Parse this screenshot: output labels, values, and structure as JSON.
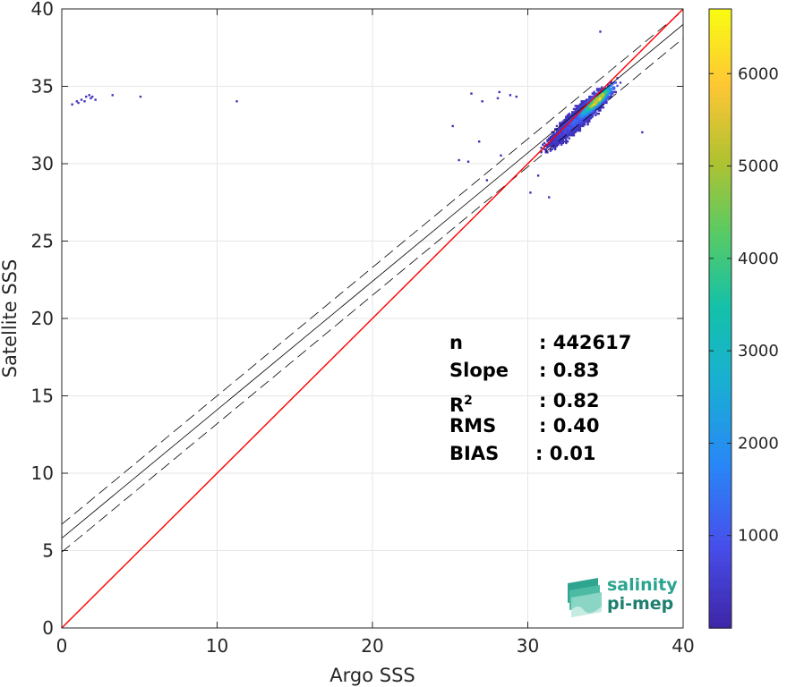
{
  "chart_data": {
    "type": "heatmap",
    "xlabel": "Argo SSS",
    "ylabel": "Satellite SSS",
    "xlim": [
      0,
      40
    ],
    "ylim": [
      0,
      40
    ],
    "xticks": [
      "0",
      "10",
      "20",
      "30",
      "40"
    ],
    "yticks": [
      "0",
      "5",
      "10",
      "15",
      "20",
      "25",
      "30",
      "35",
      "40"
    ],
    "grid": true,
    "colormap": "parula",
    "colorbar": {
      "range": [
        0,
        6700
      ],
      "ticks": [
        "1000",
        "2000",
        "3000",
        "4000",
        "5000",
        "6000"
      ]
    },
    "identity_line": {
      "color": "#ff0000",
      "from": [
        0,
        0
      ],
      "to": [
        40,
        40
      ]
    },
    "regression_line": {
      "color": "#000000",
      "intercept": 5.8,
      "slope": 0.83,
      "confidence_offset": 0.9
    },
    "density_clusters": [
      {
        "name": "main",
        "center": [
          33.3,
          33.0
        ],
        "spread_along": 2.3,
        "spread_across": 0.45,
        "peak": 6700
      },
      {
        "name": "outlier-group",
        "points": [
          [
            1.5,
            34.3
          ],
          [
            1.7,
            34.4
          ],
          [
            1.9,
            34.3
          ],
          [
            1.2,
            34.1
          ],
          [
            1.0,
            33.9
          ],
          [
            0.6,
            33.8
          ],
          [
            2.1,
            34.1
          ],
          [
            1.4,
            34.0
          ],
          [
            0.9,
            34.0
          ],
          [
            1.8,
            34.2
          ],
          [
            5.0,
            34.3
          ],
          [
            3.2,
            34.4
          ],
          [
            11.2,
            34.0
          ]
        ],
        "count_level": 300
      },
      {
        "name": "scattered",
        "points": [
          [
            25.1,
            32.4
          ],
          [
            25.5,
            30.2
          ],
          [
            26.1,
            30.1
          ],
          [
            26.8,
            31.4
          ],
          [
            27.3,
            28.9
          ],
          [
            28.2,
            30.5
          ],
          [
            27.0,
            34.0
          ],
          [
            28.1,
            34.6
          ],
          [
            28.8,
            34.4
          ],
          [
            28.0,
            34.2
          ],
          [
            26.3,
            34.5
          ],
          [
            29.2,
            34.3
          ],
          [
            37.3,
            32.0
          ],
          [
            34.6,
            38.5
          ],
          [
            30.1,
            28.1
          ],
          [
            31.3,
            27.8
          ],
          [
            30.6,
            29.2
          ]
        ],
        "count_level": 200
      }
    ]
  },
  "stats": [
    {
      "name": "n",
      "value": ": 442617"
    },
    {
      "name": "Slope",
      "value": ": 0.83"
    },
    {
      "name": "R",
      "sup": "2",
      "value": ": 0.82"
    },
    {
      "name": "RMS",
      "value": ": 0.40"
    },
    {
      "name": "BIAS",
      "value": ": 0.01"
    }
  ],
  "logo": {
    "line1": "salinity",
    "line2": "pi-mep"
  }
}
